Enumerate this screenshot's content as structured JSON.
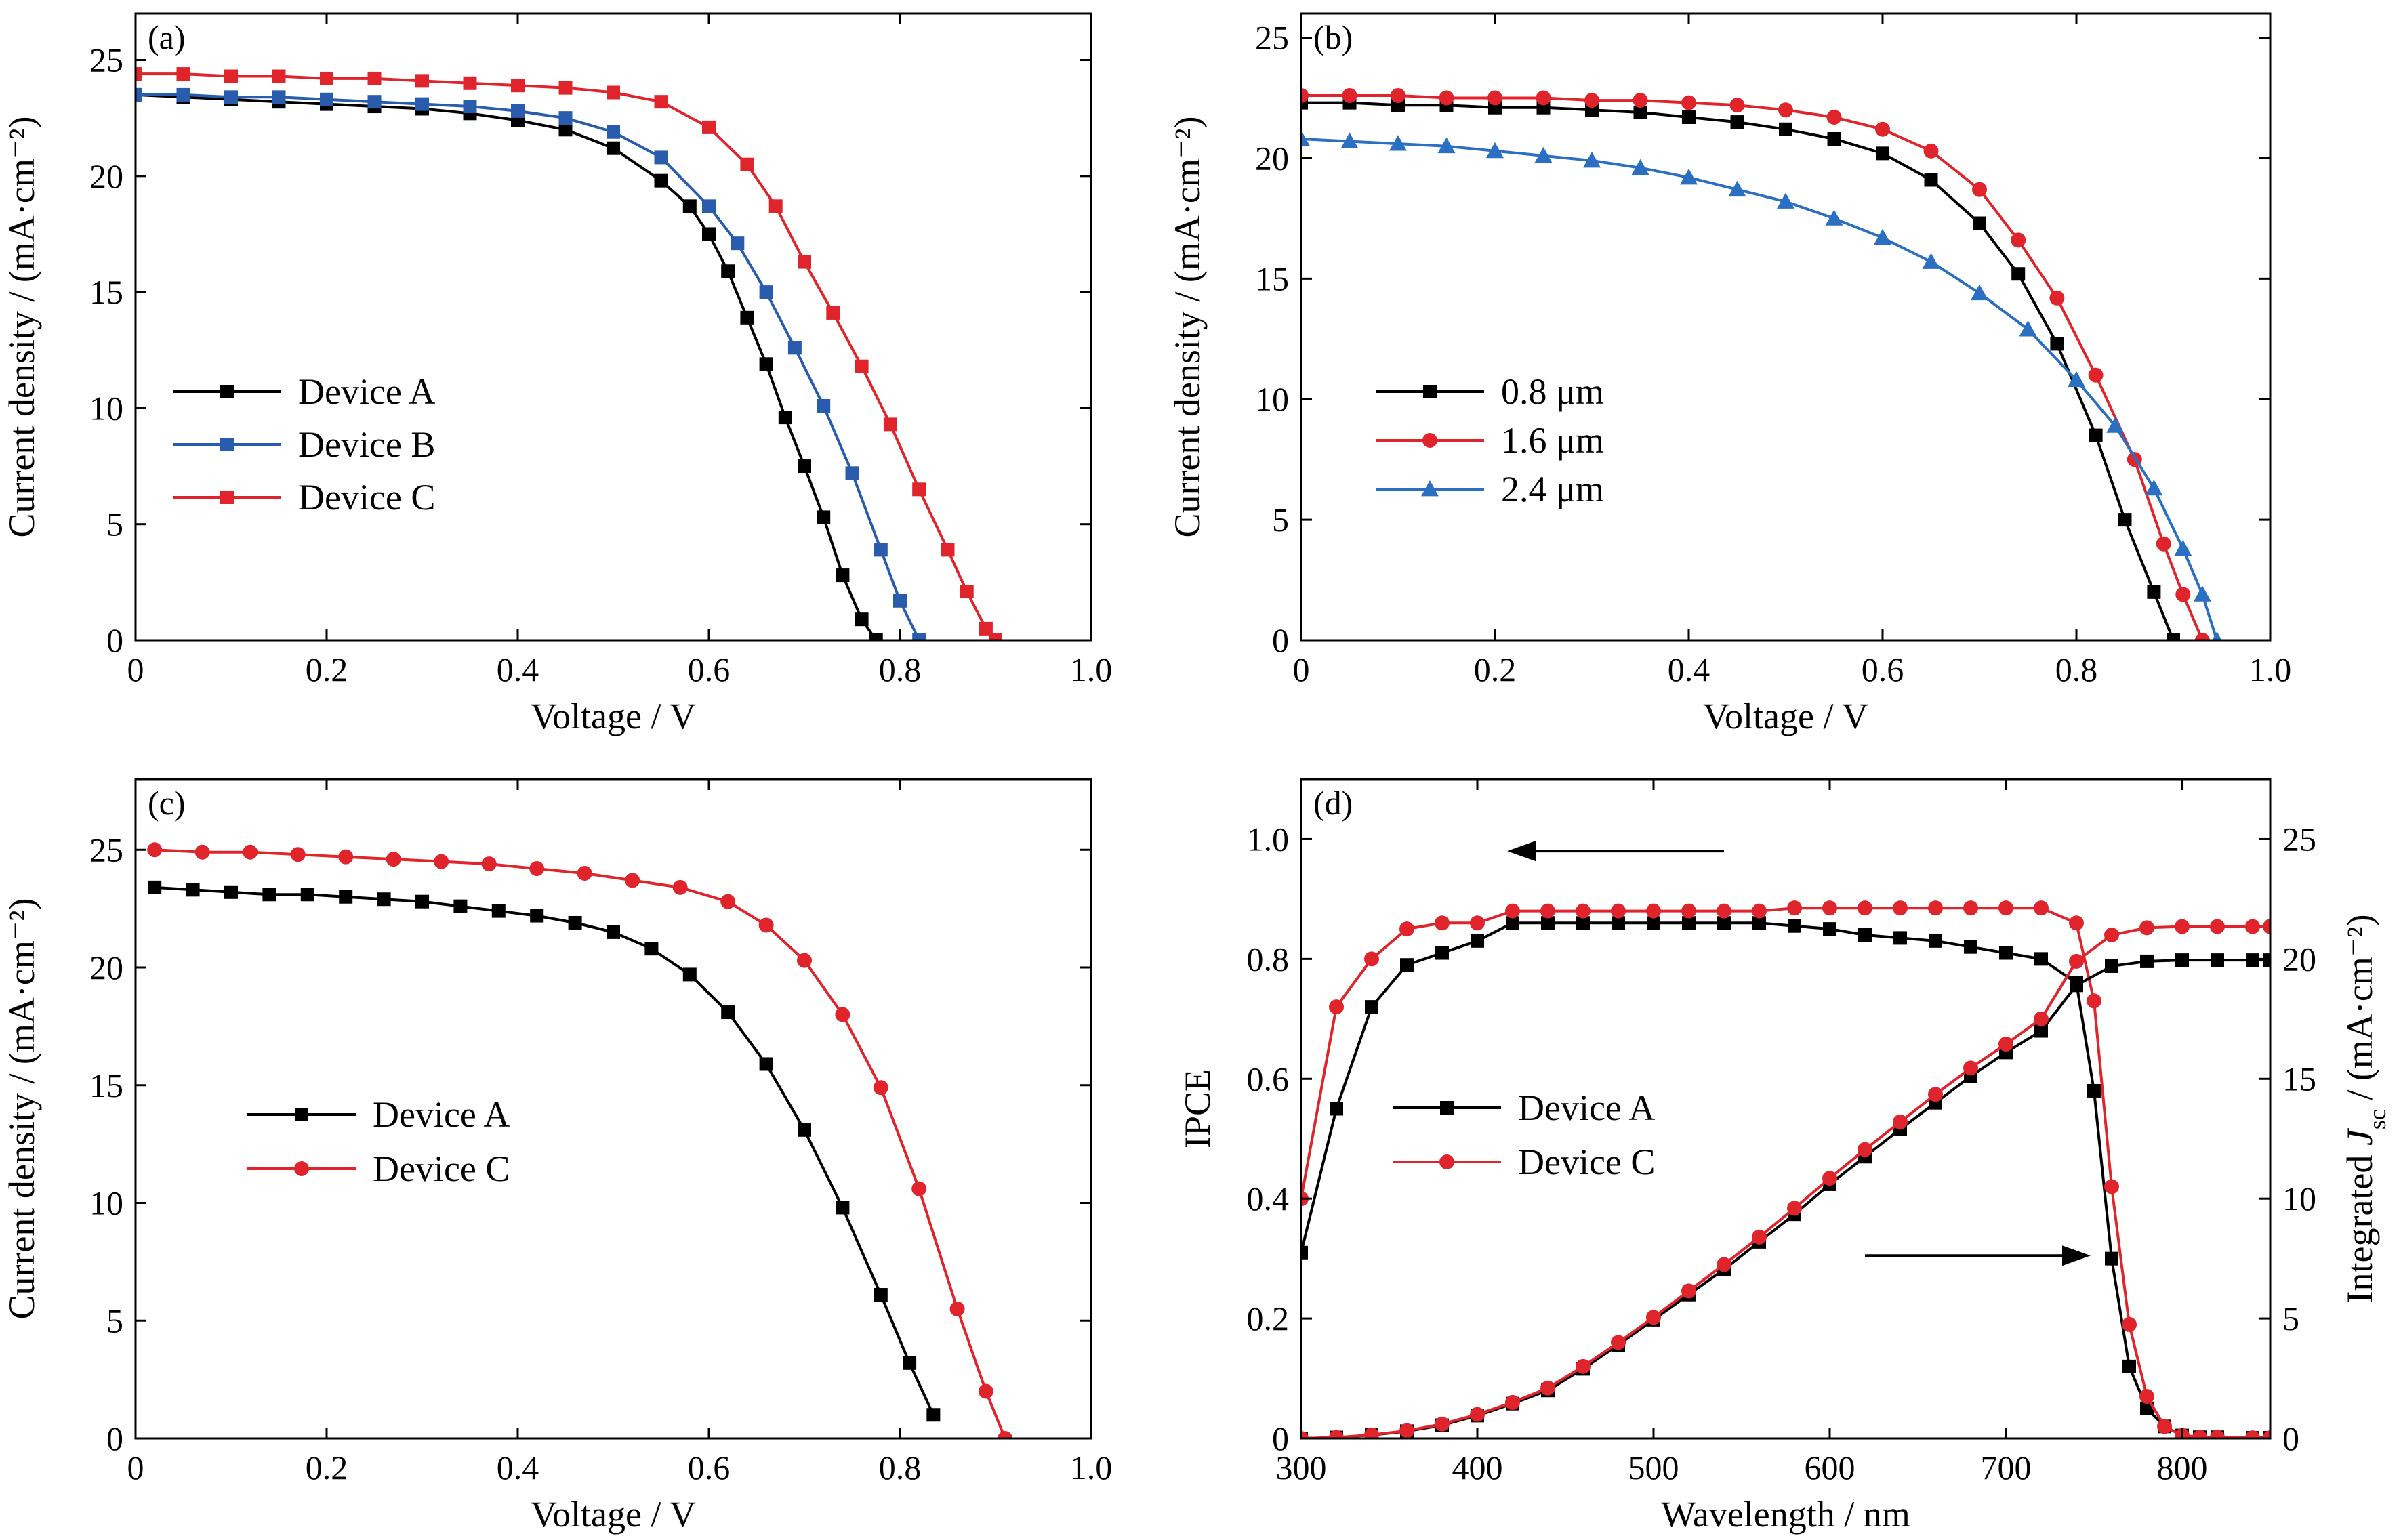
{
  "chart_data": [
    {
      "id": "a",
      "type": "line",
      "panel_label": "(a)",
      "xlabel": "Voltage / V",
      "ylabel": "Current density / (mA·cm⁻²)",
      "xlim": [
        0,
        1.0
      ],
      "ylim": [
        0,
        27
      ],
      "xticks": [
        0,
        0.2,
        0.4,
        0.6,
        0.8,
        1.0
      ],
      "xtick_labels": [
        "0",
        "0.2",
        "0.4",
        "0.6",
        "0.8",
        "1.0"
      ],
      "yticks": [
        0,
        5,
        10,
        15,
        20,
        25
      ],
      "ytick_labels": [
        "0",
        "5",
        "10",
        "15",
        "20",
        "25"
      ],
      "legend_position": "center-left",
      "series": [
        {
          "name": "Device A",
          "color": "#000000",
          "marker": "square",
          "x": [
            0,
            0.05,
            0.1,
            0.15,
            0.2,
            0.25,
            0.3,
            0.35,
            0.4,
            0.45,
            0.5,
            0.55,
            0.58,
            0.6,
            0.62,
            0.64,
            0.66,
            0.68,
            0.7,
            0.72,
            0.74,
            0.76,
            0.775
          ],
          "y": [
            23.5,
            23.4,
            23.3,
            23.2,
            23.1,
            23.0,
            22.9,
            22.7,
            22.4,
            22.0,
            21.2,
            19.8,
            18.7,
            17.5,
            15.9,
            13.9,
            11.9,
            9.6,
            7.5,
            5.3,
            2.8,
            0.9,
            0
          ]
        },
        {
          "name": "Device B",
          "color": "#2a5cad",
          "marker": "square",
          "x": [
            0,
            0.05,
            0.1,
            0.15,
            0.2,
            0.25,
            0.3,
            0.35,
            0.4,
            0.45,
            0.5,
            0.55,
            0.6,
            0.63,
            0.66,
            0.69,
            0.72,
            0.75,
            0.78,
            0.8,
            0.82
          ],
          "y": [
            23.5,
            23.5,
            23.4,
            23.4,
            23.3,
            23.2,
            23.1,
            23.0,
            22.8,
            22.5,
            21.9,
            20.8,
            18.7,
            17.1,
            15.0,
            12.6,
            10.1,
            7.2,
            3.9,
            1.7,
            0
          ]
        },
        {
          "name": "Device C",
          "color": "#e0242c",
          "marker": "square",
          "x": [
            0,
            0.05,
            0.1,
            0.15,
            0.2,
            0.25,
            0.3,
            0.35,
            0.4,
            0.45,
            0.5,
            0.55,
            0.6,
            0.64,
            0.67,
            0.7,
            0.73,
            0.76,
            0.79,
            0.82,
            0.85,
            0.87,
            0.89,
            0.9
          ],
          "y": [
            24.4,
            24.4,
            24.3,
            24.3,
            24.2,
            24.2,
            24.1,
            24.0,
            23.9,
            23.8,
            23.6,
            23.2,
            22.1,
            20.5,
            18.7,
            16.3,
            14.1,
            11.8,
            9.3,
            6.5,
            3.9,
            2.1,
            0.5,
            0
          ]
        }
      ]
    },
    {
      "id": "b",
      "type": "line",
      "panel_label": "(b)",
      "xlabel": "Voltage / V",
      "ylabel": "Current density / (mA·cm⁻²)",
      "xlim": [
        0,
        1.0
      ],
      "ylim": [
        0,
        26
      ],
      "xticks": [
        0,
        0.2,
        0.4,
        0.6,
        0.8,
        1.0
      ],
      "xtick_labels": [
        "0",
        "0.2",
        "0.4",
        "0.6",
        "0.8",
        "1.0"
      ],
      "yticks": [
        0,
        5,
        10,
        15,
        20,
        25
      ],
      "ytick_labels": [
        "0",
        "5",
        "10",
        "15",
        "20",
        "25"
      ],
      "legend_position": "center-left",
      "series": [
        {
          "name": "0.8 μm",
          "color": "#000000",
          "marker": "square",
          "x": [
            0,
            0.05,
            0.1,
            0.15,
            0.2,
            0.25,
            0.3,
            0.35,
            0.4,
            0.45,
            0.5,
            0.55,
            0.6,
            0.65,
            0.7,
            0.74,
            0.78,
            0.82,
            0.85,
            0.88,
            0.9
          ],
          "y": [
            22.3,
            22.3,
            22.2,
            22.2,
            22.1,
            22.1,
            22.0,
            21.9,
            21.7,
            21.5,
            21.2,
            20.8,
            20.2,
            19.1,
            17.3,
            15.2,
            12.3,
            8.5,
            5.0,
            2.0,
            0
          ]
        },
        {
          "name": "1.6 μm",
          "color": "#e0242c",
          "marker": "circle",
          "x": [
            0,
            0.05,
            0.1,
            0.15,
            0.2,
            0.25,
            0.3,
            0.35,
            0.4,
            0.45,
            0.5,
            0.55,
            0.6,
            0.65,
            0.7,
            0.74,
            0.78,
            0.82,
            0.86,
            0.89,
            0.91,
            0.93
          ],
          "y": [
            22.6,
            22.6,
            22.6,
            22.5,
            22.5,
            22.5,
            22.4,
            22.4,
            22.3,
            22.2,
            22.0,
            21.7,
            21.2,
            20.3,
            18.7,
            16.6,
            14.2,
            11.0,
            7.5,
            4.0,
            1.9,
            0
          ]
        },
        {
          "name": "2.4 μm",
          "color": "#2a6fc2",
          "marker": "triangle",
          "x": [
            0,
            0.05,
            0.1,
            0.15,
            0.2,
            0.25,
            0.3,
            0.35,
            0.4,
            0.45,
            0.5,
            0.55,
            0.6,
            0.65,
            0.7,
            0.75,
            0.8,
            0.84,
            0.88,
            0.91,
            0.93,
            0.945
          ],
          "y": [
            20.8,
            20.7,
            20.6,
            20.5,
            20.3,
            20.1,
            19.9,
            19.6,
            19.2,
            18.7,
            18.2,
            17.5,
            16.7,
            15.7,
            14.4,
            12.9,
            10.8,
            8.9,
            6.3,
            3.8,
            1.9,
            0
          ]
        }
      ]
    },
    {
      "id": "c",
      "type": "line",
      "panel_label": "(c)",
      "xlabel": "Voltage / V",
      "ylabel": "Current density / (mA·cm⁻²)",
      "xlim": [
        0,
        1.0
      ],
      "ylim": [
        0,
        28
      ],
      "xticks": [
        0,
        0.2,
        0.4,
        0.6,
        0.8,
        1.0
      ],
      "xtick_labels": [
        "0",
        "0.2",
        "0.4",
        "0.6",
        "0.8",
        "1.0"
      ],
      "yticks": [
        0,
        5,
        10,
        15,
        20,
        25
      ],
      "ytick_labels": [
        "0",
        "5",
        "10",
        "15",
        "20",
        "25"
      ],
      "legend_position": "center-left",
      "series": [
        {
          "name": "Device A",
          "color": "#000000",
          "marker": "square",
          "x": [
            0.02,
            0.06,
            0.1,
            0.14,
            0.18,
            0.22,
            0.26,
            0.3,
            0.34,
            0.38,
            0.42,
            0.46,
            0.5,
            0.54,
            0.58,
            0.62,
            0.66,
            0.7,
            0.74,
            0.78,
            0.81,
            0.835
          ],
          "y": [
            23.4,
            23.3,
            23.2,
            23.1,
            23.1,
            23.0,
            22.9,
            22.8,
            22.6,
            22.4,
            22.2,
            21.9,
            21.5,
            20.8,
            19.7,
            18.1,
            15.9,
            13.1,
            9.8,
            6.1,
            3.2,
            1.0
          ]
        },
        {
          "name": "Device C",
          "color": "#e0242c",
          "marker": "circle",
          "x": [
            0.02,
            0.07,
            0.12,
            0.17,
            0.22,
            0.27,
            0.32,
            0.37,
            0.42,
            0.47,
            0.52,
            0.57,
            0.62,
            0.66,
            0.7,
            0.74,
            0.78,
            0.82,
            0.86,
            0.89,
            0.91
          ],
          "y": [
            25.0,
            24.9,
            24.9,
            24.8,
            24.7,
            24.6,
            24.5,
            24.4,
            24.2,
            24.0,
            23.7,
            23.4,
            22.8,
            21.8,
            20.3,
            18.0,
            14.9,
            10.6,
            5.5,
            2.0,
            0
          ]
        }
      ]
    },
    {
      "id": "d",
      "type": "line",
      "panel_label": "(d)",
      "xlabel": "Wavelength / nm",
      "ylabel": "IPCE",
      "ylabel_right_parts": [
        "Integrated ",
        "J",
        "sc",
        " / (mA·cm⁻²)"
      ],
      "xlim": [
        300,
        850
      ],
      "ylim": [
        0,
        1.1
      ],
      "ylim_right": [
        0,
        27.5
      ],
      "xticks": [
        300,
        400,
        500,
        600,
        700,
        800
      ],
      "xtick_labels": [
        "300",
        "400",
        "500",
        "600",
        "700",
        "800"
      ],
      "yticks": [
        0,
        0.2,
        0.4,
        0.6,
        0.8,
        1.0
      ],
      "ytick_labels": [
        "0",
        "0.2",
        "0.4",
        "0.6",
        "0.8",
        "1.0"
      ],
      "yticks_right": [
        0,
        5,
        10,
        15,
        20,
        25
      ],
      "ytick_labels_right": [
        "0",
        "5",
        "10",
        "15",
        "20",
        "25"
      ],
      "legend_position": "center-left",
      "arrows": [
        {
          "direction": "left",
          "axis": "IPCE",
          "x_from": 540,
          "x_to": 420,
          "y": 0.98
        },
        {
          "direction": "right",
          "axis": "Integrated Jsc",
          "x_from": 620,
          "x_to": 745,
          "y": 0.305
        }
      ],
      "series": [
        {
          "name": "Device A",
          "color": "#000000",
          "marker": "square",
          "axis": "left",
          "x": [
            300,
            320,
            340,
            360,
            380,
            400,
            420,
            440,
            460,
            480,
            500,
            520,
            540,
            560,
            580,
            600,
            620,
            640,
            660,
            680,
            700,
            720,
            740,
            750,
            760,
            770,
            780,
            790,
            800,
            810,
            820,
            840,
            850
          ],
          "y": [
            0.31,
            0.55,
            0.72,
            0.79,
            0.81,
            0.83,
            0.86,
            0.86,
            0.86,
            0.86,
            0.86,
            0.86,
            0.86,
            0.86,
            0.855,
            0.85,
            0.84,
            0.835,
            0.83,
            0.82,
            0.81,
            0.8,
            0.76,
            0.58,
            0.3,
            0.12,
            0.05,
            0.02,
            0.005,
            0.002,
            0.002,
            0.001,
            0.001
          ]
        },
        {
          "name": "Device C",
          "color": "#e0242c",
          "marker": "circle",
          "axis": "left",
          "x": [
            300,
            320,
            340,
            360,
            380,
            400,
            420,
            440,
            460,
            480,
            500,
            520,
            540,
            560,
            580,
            600,
            620,
            640,
            660,
            680,
            700,
            720,
            740,
            750,
            760,
            770,
            780,
            790,
            800,
            810,
            820,
            840,
            850
          ],
          "y": [
            0.4,
            0.72,
            0.8,
            0.85,
            0.86,
            0.86,
            0.88,
            0.88,
            0.88,
            0.88,
            0.88,
            0.88,
            0.88,
            0.88,
            0.885,
            0.885,
            0.885,
            0.885,
            0.885,
            0.885,
            0.885,
            0.885,
            0.86,
            0.73,
            0.42,
            0.19,
            0.07,
            0.02,
            0.005,
            0.002,
            0.002,
            0.001,
            0.001
          ]
        },
        {
          "name": "Device A integrated",
          "color": "#000000",
          "marker": "square",
          "axis": "right",
          "x": [
            300,
            320,
            340,
            360,
            380,
            400,
            420,
            440,
            460,
            480,
            500,
            520,
            540,
            560,
            580,
            600,
            620,
            640,
            660,
            680,
            700,
            720,
            740,
            760,
            780,
            800,
            820,
            840,
            850
          ],
          "y": [
            0,
            0.04,
            0.14,
            0.3,
            0.55,
            0.95,
            1.45,
            2.0,
            2.9,
            3.9,
            4.95,
            6.0,
            7.05,
            8.2,
            9.35,
            10.6,
            11.75,
            12.9,
            14.0,
            15.1,
            16.1,
            17.0,
            18.9,
            19.7,
            19.9,
            19.95,
            19.95,
            19.95,
            19.95
          ]
        },
        {
          "name": "Device C integrated",
          "color": "#e0242c",
          "marker": "circle",
          "axis": "right",
          "x": [
            300,
            320,
            340,
            360,
            380,
            400,
            420,
            440,
            460,
            480,
            500,
            520,
            540,
            560,
            580,
            600,
            620,
            640,
            660,
            680,
            700,
            720,
            740,
            760,
            780,
            800,
            820,
            840,
            850
          ],
          "y": [
            0,
            0.04,
            0.15,
            0.32,
            0.6,
            1.0,
            1.5,
            2.1,
            3.0,
            4.0,
            5.05,
            6.15,
            7.25,
            8.4,
            9.6,
            10.85,
            12.05,
            13.2,
            14.35,
            15.45,
            16.45,
            17.5,
            19.9,
            21.0,
            21.3,
            21.35,
            21.35,
            21.35,
            21.35
          ]
        }
      ]
    }
  ]
}
